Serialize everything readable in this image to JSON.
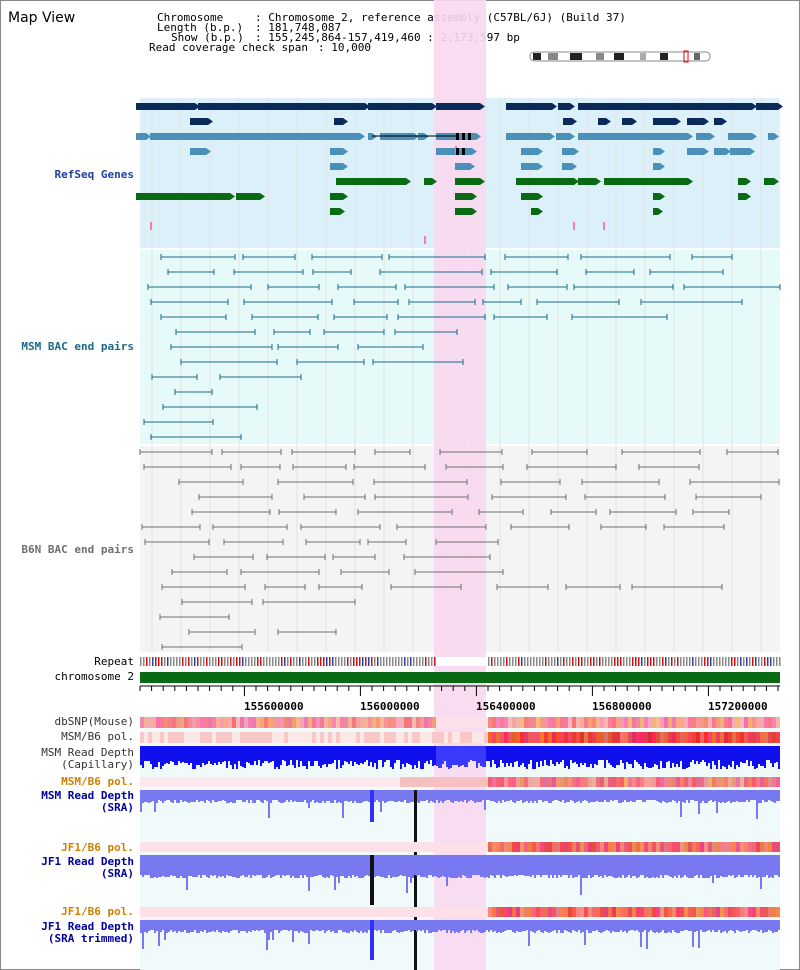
{
  "app_title": "Map View",
  "info": {
    "chromosome_label": "Chromosome",
    "chromosome_value": ": Chromosome 2, reference assembly (C57BL/6J) (Build 37)",
    "length_label": "Length (b.p.)",
    "length_value": ": 181,748,087",
    "show_label": "Show (b.p.)",
    "show_value": ": 155,245,864-157,419,460 : 2,173,597 bp",
    "coverage_label": "Read coverage check span",
    "coverage_value": ": 10,000"
  },
  "tracks": {
    "refseq": "RefSeq Genes",
    "msm_bac": "MSM BAC end pairs",
    "b6n_bac": "B6N BAC end pairs",
    "repeat": "Repeat",
    "chromosome": "chromosome 2",
    "dbsnp": "dbSNP(Mouse)",
    "msm_b6_pol_1": "MSM/B6 pol.",
    "msm_depth_cap_1": "MSM Read Depth",
    "msm_depth_cap_2": "(Capillary)",
    "msm_b6_pol_2": "MSM/B6 pol.",
    "msm_depth_sra_1": "MSM Read Depth",
    "msm_depth_sra_2": "(SRA)",
    "jf1_b6_pol_1": "JF1/B6 pol.",
    "jf1_depth_sra_1": "JF1 Read Depth",
    "jf1_depth_sra_2": "(SRA)",
    "jf1_b6_pol_2": "JF1/B6 pol.",
    "jf1_depth_trim_1": "JF1 Read Depth",
    "jf1_depth_trim_2": "(SRA trimmed)"
  },
  "axis_ticks": [
    "155600000",
    "156000000",
    "156400000",
    "156800000",
    "157200000"
  ],
  "colors": {
    "refseq_bg": "#dcf0fa",
    "msm_bac_bg": "#e6fafa",
    "b6n_bac_bg": "#f4f4f4",
    "highlight": "#f8d8f0",
    "gene_navy": "#0a2a5a",
    "gene_teal": "#4a90b8",
    "gene_green": "#0a6a14",
    "msm_line": "#1a6a8a",
    "b6n_line": "#707070",
    "label_blue": "#2040a0",
    "label_teal": "#1a6a8a",
    "label_orange": "#d08000",
    "label_navy": "#0000a0"
  }
}
